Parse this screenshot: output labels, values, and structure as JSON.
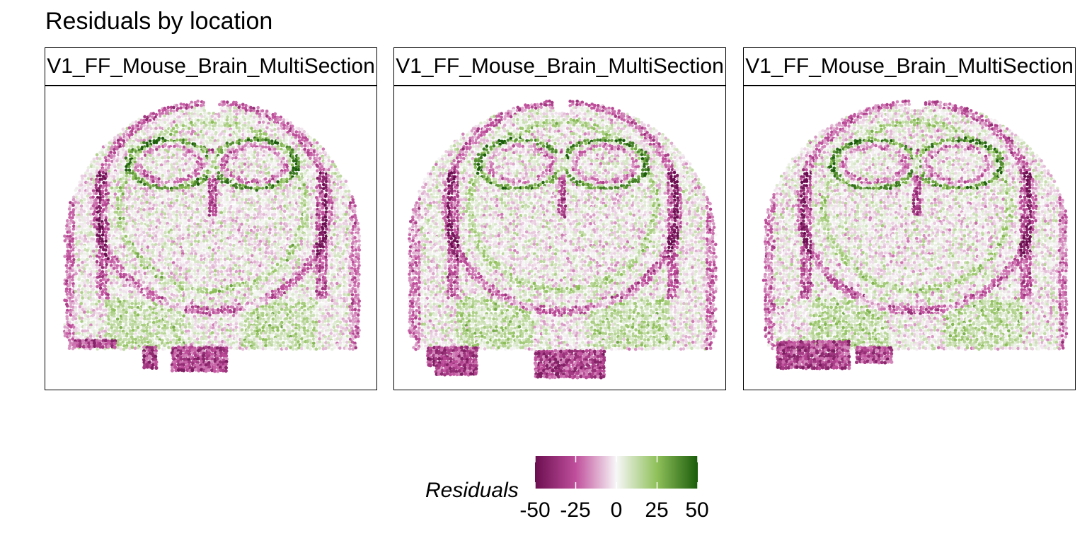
{
  "chart_data": {
    "type": "scatter",
    "title": "Residuals by location",
    "facets": [
      {
        "label": "V1_FF_Mouse_Brain_MultiSection"
      },
      {
        "label": "V1_FF_Mouse_Brain_MultiSection"
      },
      {
        "label": "V1_FF_Mouse_Brain_MultiSection"
      }
    ],
    "color_scale": {
      "name": "Residuals",
      "limits": [
        -50,
        50
      ],
      "breaks": [
        -50,
        -25,
        0,
        25,
        50
      ],
      "tick_labels": [
        "-50",
        "-25",
        "0",
        "25",
        "50"
      ],
      "palette": [
        "#6b0e50",
        "#c04f9c",
        "#f7f7f7",
        "#8fc05a",
        "#1a5c0a"
      ]
    },
    "legend_position": "bottom",
    "grid": false
  }
}
